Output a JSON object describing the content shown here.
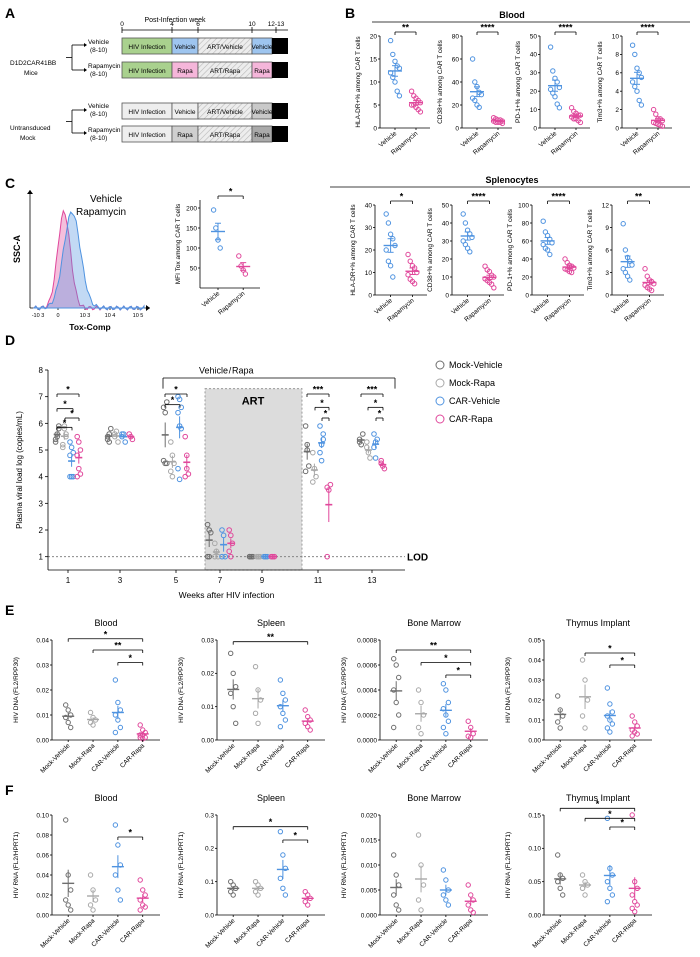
{
  "colors": {
    "vehicle": "#4f93e0",
    "rapa": "#e0479b",
    "mock_dark": "#6e6e6e",
    "mock_light": "#a8a8a8",
    "hiv": "#a9d18e",
    "art_gray": "#d9d9d9",
    "sac": "#000000"
  },
  "panel_letters": {
    "a": "A",
    "b": "B",
    "c": "C",
    "d": "D",
    "e": "E",
    "f": "F"
  },
  "panel_a": {
    "header": "Post-Infection week",
    "weeks": [
      "0",
      "4",
      "6",
      "10",
      "12-13"
    ],
    "group1": "D1D2CAR41BB",
    "group1b": "Mice",
    "group2": "Untransduced",
    "group2b": "Mock",
    "vehicle": "Vehicle",
    "rapamycin": "Rapamycin",
    "n": "(8-10)",
    "hiv_infection": "HIV Infection",
    "veh": "Vehicle",
    "rapa": "Rapa",
    "art_vehicle": "ART/Vehicle",
    "art_rapa": "ART/Rapa",
    "sac": "Sac"
  },
  "panel_b": {
    "title": "Blood",
    "labels": {
      "vehicle": "Vehicle",
      "rapamycin": "Rapamycin"
    },
    "plots": [
      {
        "ylabel": "HLA-DR+% among CAR T cells",
        "sig": "**",
        "ticks": [
          "0",
          "5",
          "10",
          "15",
          "20"
        ],
        "ylim": [
          0,
          20
        ],
        "vehicle": [
          19,
          16,
          14.5,
          13.5,
          13,
          12,
          11,
          10,
          8,
          7
        ],
        "rapamycin": [
          8,
          7,
          6.5,
          6,
          5.5,
          5,
          5,
          4.5,
          4,
          3.5
        ]
      },
      {
        "ylabel": "CD38+% among CAR T cells",
        "sig": "****",
        "ticks": [
          "0",
          "20",
          "40",
          "60",
          "80"
        ],
        "ylim": [
          0,
          80
        ],
        "vehicle": [
          60,
          40,
          36,
          31,
          29,
          26,
          24,
          20,
          18
        ],
        "rapamycin": [
          9,
          8,
          7,
          7,
          6,
          6,
          5,
          5,
          5,
          4
        ]
      },
      {
        "ylabel": "PD-1+% among CAR T cells",
        "sig": "****",
        "ticks": [
          "0",
          "10",
          "20",
          "30",
          "40",
          "50"
        ],
        "ylim": [
          0,
          50
        ],
        "vehicle": [
          44,
          31,
          27,
          25,
          22,
          21,
          19,
          17,
          13,
          11
        ],
        "rapamycin": [
          11,
          9,
          8,
          7,
          7,
          6,
          5,
          5,
          4,
          3
        ]
      },
      {
        "ylabel": "Tim3+% among CAR T cells",
        "sig": "****",
        "ticks": [
          "0",
          "2",
          "4",
          "6",
          "8",
          "10"
        ],
        "ylim": [
          0,
          10
        ],
        "vehicle": [
          9,
          8,
          6.5,
          6,
          5.5,
          5,
          4.5,
          4,
          3,
          2.5
        ],
        "rapamycin": [
          2,
          1.5,
          1,
          1,
          0.8,
          0.6,
          0.5,
          0.4,
          0.3,
          0.2
        ]
      }
    ]
  },
  "panel_c": {
    "legend_vehicle": "Vehicle",
    "legend_rapa": "Rapamycin",
    "ylabel": "SSC-A",
    "xlabel": "Tox-Comp",
    "xticks": [
      "-10 3",
      "0",
      "10 3",
      "10 4",
      "10 5"
    ],
    "mfi": {
      "ylabel": "MFI Tox among CAR T cells",
      "sig": "*",
      "ticks": [
        "50",
        "100",
        "150",
        "200"
      ],
      "ylim": [
        0,
        220
      ],
      "vehicle": [
        195,
        150,
        120,
        100
      ],
      "rapamycin": [
        80,
        55,
        45,
        35
      ]
    },
    "labels": {
      "vehicle": "Vehicle",
      "rapamycin": "Rapamycin"
    }
  },
  "splenocytes": {
    "title": "Splenocytes",
    "plots": [
      {
        "ylabel": "HLA-DR+% among CAR T cells",
        "sig": "*",
        "ticks": [
          "0",
          "10",
          "20",
          "30",
          "40"
        ],
        "ylim": [
          0,
          40
        ],
        "vehicle": [
          36,
          32,
          27,
          25,
          22,
          20,
          15,
          13,
          8
        ],
        "rapamycin": [
          18,
          15,
          13,
          12,
          10,
          9,
          7,
          6,
          5
        ]
      },
      {
        "ylabel": "CD38+% among CAR T cells",
        "sig": "****",
        "ticks": [
          "0",
          "10",
          "20",
          "30",
          "40",
          "50"
        ],
        "ylim": [
          0,
          50
        ],
        "vehicle": [
          45,
          40,
          36,
          34,
          32,
          30,
          28,
          26,
          24
        ],
        "rapamycin": [
          16,
          14,
          13,
          11,
          10,
          9,
          8,
          7,
          6,
          4
        ]
      },
      {
        "ylabel": "PD-1+% among CAR T cells",
        "sig": "****",
        "ticks": [
          "0",
          "20",
          "40",
          "60",
          "80",
          "100"
        ],
        "ylim": [
          0,
          100
        ],
        "vehicle": [
          82,
          70,
          66,
          62,
          58,
          56,
          52,
          50,
          45
        ],
        "rapamycin": [
          40,
          36,
          33,
          32,
          30,
          29,
          28,
          26,
          25
        ]
      },
      {
        "ylabel": "Tim3+% among CAR T cells",
        "sig": "**",
        "ticks": [
          "0",
          "3",
          "6",
          "9",
          "12"
        ],
        "ylim": [
          0,
          12
        ],
        "vehicle": [
          9.5,
          6,
          5,
          4.5,
          4,
          3.5,
          3,
          2.5,
          2
        ],
        "rapamycin": [
          3.5,
          2.5,
          2,
          1.8,
          1.5,
          1.3,
          1,
          0.8,
          0.6
        ]
      }
    ]
  },
  "panel_d": {
    "ylabel": "Plasma viral load log (copies/mL)",
    "xlabel": "Weeks after HIV infection",
    "xticks": [
      "1",
      "3",
      "5",
      "7",
      "9",
      "11",
      "13"
    ],
    "yticks": [
      "1",
      "2",
      "3",
      "4",
      "5",
      "6",
      "7",
      "8"
    ],
    "ylim": [
      0.5,
      8
    ],
    "art": "ART",
    "lod": "LOD",
    "vehicle_label": "Vehicle",
    "slash": "/",
    "rapa_label": "Rapa",
    "legend": [
      "Mock-Vehicle",
      "Mock-Rapa",
      "CAR-Vehicle",
      "CAR-Rapa"
    ],
    "sig": {
      "w1a": "*",
      "w1b": "*",
      "w1c": "*",
      "w1d": "*",
      "w5a": "*",
      "w5b": "*",
      "w11a": "***",
      "w11b": "*",
      "w11c": "*",
      "w13a": "***",
      "w13b": "*",
      "w13c": "*"
    },
    "series": {
      "mock_vehicle": {
        "1": [
          5.3,
          5.6,
          5.8,
          5.4,
          5.5,
          5.9
        ],
        "3": [
          5.4,
          5.6,
          5.8,
          5.5,
          5.3
        ],
        "5": [
          6.6,
          6.4,
          6.8,
          4.6,
          4.5,
          4.5
        ],
        "7": [
          2.2,
          2.0,
          1.9,
          1.0,
          1.0
        ],
        "9": [
          1,
          1,
          1,
          1
        ],
        "11": [
          5.9,
          5.2,
          4.4,
          4.2,
          5.0
        ],
        "13": [
          5.4,
          5.2,
          5.6,
          5.3
        ]
      },
      "mock_rapa": {
        "1": [
          5.2,
          5.8,
          5.5,
          5.1,
          5.9,
          5.6
        ],
        "3": [
          5.5,
          5.7,
          5.3,
          5.6
        ],
        "5": [
          5.3,
          4.8,
          4.5,
          4.2,
          4.0
        ],
        "7": [
          1.5,
          1.2,
          1.0,
          1.0
        ],
        "9": [
          1,
          1,
          1
        ],
        "11": [
          4.9,
          4.3,
          4.0,
          3.8
        ],
        "13": [
          5.3,
          4.9,
          4.7,
          5.1
        ]
      },
      "car_vehicle": {
        "1": [
          5.3,
          5.1,
          4.9,
          4.0,
          4.0,
          4.0,
          4.8
        ],
        "3": [
          5.5,
          5.6,
          5.3,
          5.6
        ],
        "5": [
          7.0,
          6.9,
          6.6,
          6.4,
          5.9,
          5.8,
          4.3,
          3.9
        ],
        "7": [
          2.0,
          1.8,
          1.0,
          1.0
        ],
        "9": [
          1,
          1,
          1
        ],
        "11": [
          5.9,
          5.2,
          5.6,
          4.9,
          4.6,
          5.4
        ],
        "13": [
          5.6,
          5.3,
          5.4,
          5.1,
          4.7
        ]
      },
      "car_rapa": {
        "1": [
          5.5,
          5.3,
          5.0,
          4.8,
          4.3,
          4.1,
          4.0
        ],
        "3": [
          5.6,
          5.5,
          5.4
        ],
        "5": [
          5.5,
          4.8,
          4.1,
          4.0,
          4.3
        ],
        "7": [
          2.0,
          1.8,
          1.5,
          1.2,
          1.0
        ],
        "9": [
          1,
          1,
          1
        ],
        "11": [
          3.6,
          3.5,
          3.7,
          1.0
        ],
        "13": [
          4.6,
          4.4,
          4.3,
          4.5
        ]
      }
    }
  },
  "panel_e": {
    "ylabel": "HIV DNA (FL2/RPP30)",
    "groups": [
      "Mock-Vehicle",
      "Mock-Rapa",
      "CAR-Vehicle",
      "CAR-Rapa"
    ],
    "plots": [
      {
        "title": "Blood",
        "ticks": [
          "0.00",
          "0.01",
          "0.02",
          "0.03",
          "0.04"
        ],
        "ylim": [
          0,
          0.04
        ],
        "sig": {
          "a": "*",
          "b": "**",
          "c": "*"
        },
        "values": [
          [
            0.014,
            0.012,
            0.01,
            0.009,
            0.007,
            0.005
          ],
          [
            0.011,
            0.009,
            0.008,
            0.007,
            0.006
          ],
          [
            0.024,
            0.015,
            0.012,
            0.01,
            0.008,
            0.005,
            0.003
          ],
          [
            0.006,
            0.004,
            0.003,
            0.002,
            0.002,
            0.001,
            0.001,
            0.0005
          ]
        ]
      },
      {
        "title": "Spleen",
        "ticks": [
          "0.00",
          "0.01",
          "0.02",
          "0.03"
        ],
        "ylim": [
          0,
          0.03
        ],
        "sig": {
          "a": "**"
        },
        "values": [
          [
            0.026,
            0.02,
            0.016,
            0.014,
            0.01,
            0.005
          ],
          [
            0.022,
            0.015,
            0.012,
            0.008,
            0.005
          ],
          [
            0.018,
            0.014,
            0.012,
            0.01,
            0.008,
            0.006,
            0.004
          ],
          [
            0.009,
            0.007,
            0.006,
            0.005,
            0.004,
            0.003
          ]
        ]
      },
      {
        "title": "Bone Marrow",
        "ticks": [
          "0.0000",
          "0.0002",
          "0.0004",
          "0.0006",
          "0.0008"
        ],
        "ylim": [
          0,
          0.0008
        ],
        "sig": {
          "a": "**",
          "b": "*",
          "c": "*"
        },
        "values": [
          [
            0.00065,
            0.0006,
            0.0005,
            0.0004,
            0.0003,
            0.0002,
            0.0001
          ],
          [
            0.0004,
            0.0003,
            0.0002,
            0.0001,
            5e-05
          ],
          [
            0.00045,
            0.0004,
            0.0003,
            0.00025,
            0.0002,
            0.00015,
            0.0001,
            5e-05
          ],
          [
            0.00015,
            0.0001,
            5e-05,
            3e-05,
            2e-05
          ]
        ]
      },
      {
        "title": "Thymus Implant",
        "ticks": [
          "0.00",
          "0.01",
          "0.02",
          "0.03",
          "0.04",
          "0.05"
        ],
        "ylim": [
          0,
          0.05
        ],
        "sig": {
          "a": "*",
          "b": "*"
        },
        "values": [
          [
            0.022,
            0.015,
            0.012,
            0.009,
            0.006
          ],
          [
            0.04,
            0.03,
            0.02,
            0.012,
            0.006
          ],
          [
            0.026,
            0.018,
            0.014,
            0.012,
            0.01,
            0.008,
            0.006,
            0.004
          ],
          [
            0.012,
            0.009,
            0.007,
            0.005,
            0.004,
            0.003,
            0.002
          ]
        ]
      }
    ]
  },
  "panel_f": {
    "ylabel": "HIV RNA (FL2/HPRT1)",
    "groups": [
      "Mock-Vehicle",
      "Mock-Rapa",
      "CAR-Vehicle",
      "CAR-Rapa"
    ],
    "plots": [
      {
        "title": "Blood",
        "ticks": [
          "0.00",
          "0.02",
          "0.04",
          "0.06",
          "0.08",
          "0.10"
        ],
        "ylim": [
          0,
          0.1
        ],
        "sig": {
          "a": "*"
        },
        "values": [
          [
            0.095,
            0.04,
            0.025,
            0.015,
            0.01,
            0.005
          ],
          [
            0.04,
            0.025,
            0.015,
            0.01,
            0.005
          ],
          [
            0.09,
            0.07,
            0.05,
            0.04,
            0.025,
            0.015
          ],
          [
            0.035,
            0.025,
            0.02,
            0.015,
            0.01,
            0.008,
            0.005
          ]
        ]
      },
      {
        "title": "Spleen",
        "ticks": [
          "0.0",
          "0.1",
          "0.2",
          "0.3"
        ],
        "ylim": [
          0,
          0.3
        ],
        "sig": {
          "a": "*",
          "b": "*"
        },
        "values": [
          [
            0.1,
            0.09,
            0.08,
            0.07,
            0.06
          ],
          [
            0.1,
            0.09,
            0.08,
            0.07,
            0.06
          ],
          [
            0.25,
            0.18,
            0.14,
            0.11,
            0.08,
            0.06
          ],
          [
            0.07,
            0.06,
            0.05,
            0.04,
            0.03
          ]
        ]
      },
      {
        "title": "Bone Marrow",
        "ticks": [
          "0.000",
          "0.005",
          "0.010",
          "0.015",
          "0.020"
        ],
        "ylim": [
          0,
          0.02
        ],
        "sig": {},
        "values": [
          [
            0.012,
            0.008,
            0.006,
            0.004,
            0.002,
            0.001
          ],
          [
            0.016,
            0.01,
            0.006,
            0.003,
            0.001
          ],
          [
            0.009,
            0.007,
            0.005,
            0.004,
            0.003,
            0.002
          ],
          [
            0.006,
            0.004,
            0.003,
            0.002,
            0.001,
            0.0005
          ]
        ]
      },
      {
        "title": "Thymus Implant",
        "ticks": [
          "0.00",
          "0.05",
          "0.10",
          "0.15"
        ],
        "ylim": [
          0,
          0.15
        ],
        "sig": {
          "a": "*",
          "b": "*",
          "c": "*"
        },
        "values": [
          [
            0.09,
            0.06,
            0.055,
            0.05,
            0.04,
            0.03
          ],
          [
            0.06,
            0.05,
            0.045,
            0.04,
            0.03
          ],
          [
            0.145,
            0.07,
            0.06,
            0.05,
            0.04,
            0.03,
            0.02
          ],
          [
            0.15,
            0.05,
            0.04,
            0.03,
            0.02,
            0.015,
            0.01,
            0.005
          ]
        ]
      }
    ]
  },
  "chart_data": [
    {
      "type": "scatter",
      "title": "Blood (B)",
      "series_names": [
        "Vehicle",
        "Rapamycin"
      ]
    },
    {
      "type": "scatter",
      "title": "Splenocytes",
      "series_names": [
        "Vehicle",
        "Rapamycin"
      ]
    },
    {
      "type": "scatter",
      "title": "Plasma viral load",
      "xlabel": "Weeks after HIV infection",
      "ylabel": "Plasma viral load log (copies/mL)"
    },
    {
      "type": "scatter",
      "title": "HIV DNA",
      "ylabel": "HIV DNA (FL2/RPP30)"
    },
    {
      "type": "scatter",
      "title": "HIV RNA",
      "ylabel": "HIV RNA (FL2/HPRT1)"
    }
  ]
}
